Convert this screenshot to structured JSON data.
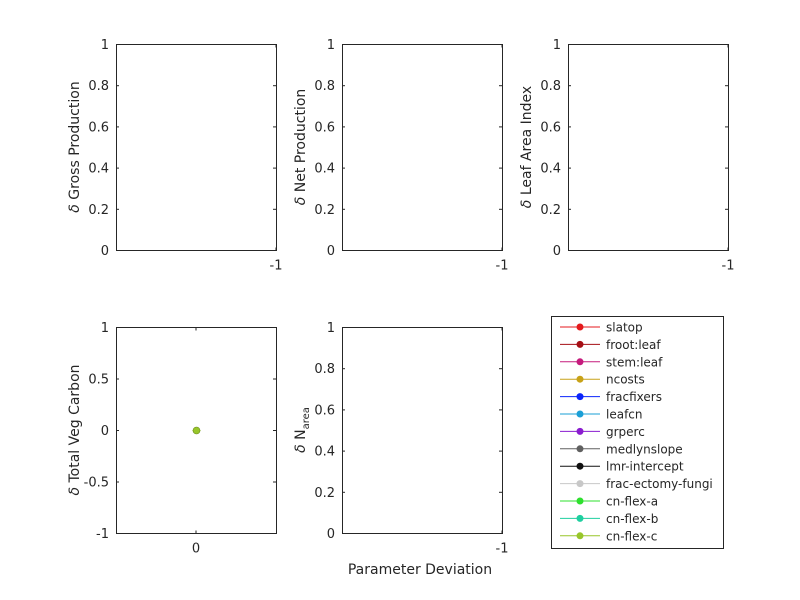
{
  "figure": {
    "xlabel": "Parameter Deviation"
  },
  "legend": {
    "placement": "right of lower panels",
    "entries": [
      {
        "name": "slatop",
        "color": "#e41a1c"
      },
      {
        "name": "froot:leaf",
        "color": "#a50f15"
      },
      {
        "name": "stem:leaf",
        "color": "#c51b7d"
      },
      {
        "name": "ncosts",
        "color": "#c8a218"
      },
      {
        "name": "fracfixers",
        "color": "#0b24fb"
      },
      {
        "name": "leafcn",
        "color": "#1a9fd6"
      },
      {
        "name": "grperc",
        "color": "#8a1ccf"
      },
      {
        "name": "medlynslope",
        "color": "#606060"
      },
      {
        "name": "lmr-intercept",
        "color": "#111111"
      },
      {
        "name": "frac-ectomy-fungi",
        "color": "#c8c8c8"
      },
      {
        "name": "cn-flex-a",
        "color": "#2ee02e"
      },
      {
        "name": "cn-flex-b",
        "color": "#1fcf9f"
      },
      {
        "name": "cn-flex-c",
        "color": "#98c62a"
      }
    ]
  },
  "chart_data": [
    {
      "type": "scatter",
      "ylabel_prefix": "δ",
      "ylabel": "Gross Production",
      "ylabel_sub": "",
      "xticks": [
        "-1"
      ],
      "yticks": [
        "0",
        "0.2",
        "0.4",
        "0.6",
        "0.8",
        "1"
      ],
      "ylim": [
        0,
        1
      ],
      "series": []
    },
    {
      "type": "scatter",
      "ylabel_prefix": "δ",
      "ylabel": "Net Production",
      "ylabel_sub": "",
      "xticks": [
        "-1"
      ],
      "yticks": [
        "0",
        "0.2",
        "0.4",
        "0.6",
        "0.8",
        "1"
      ],
      "ylim": [
        0,
        1
      ],
      "series": []
    },
    {
      "type": "scatter",
      "ylabel_prefix": "δ",
      "ylabel": "Leaf Area Index",
      "ylabel_sub": "",
      "xticks": [
        "-1"
      ],
      "yticks": [
        "0",
        "0.2",
        "0.4",
        "0.6",
        "0.8",
        "1"
      ],
      "ylim": [
        0,
        1
      ],
      "series": []
    },
    {
      "type": "scatter",
      "ylabel_prefix": "δ",
      "ylabel": "Total Veg Carbon",
      "ylabel_sub": "",
      "xticks": [
        "0"
      ],
      "yticks": [
        "-1",
        "-0.5",
        "0",
        "0.5",
        "1"
      ],
      "xlim": [
        -1,
        1
      ],
      "ylim": [
        -1,
        1
      ],
      "series": [
        {
          "name": "cn-flex-c",
          "color": "#98c62a",
          "points": [
            [
              0,
              0
            ]
          ]
        }
      ]
    },
    {
      "type": "scatter",
      "ylabel_prefix": "δ",
      "ylabel": "N",
      "ylabel_sub": "area",
      "xticks": [
        "-1"
      ],
      "yticks": [
        "0",
        "0.2",
        "0.4",
        "0.6",
        "0.8",
        "1"
      ],
      "ylim": [
        0,
        1
      ],
      "series": []
    }
  ]
}
